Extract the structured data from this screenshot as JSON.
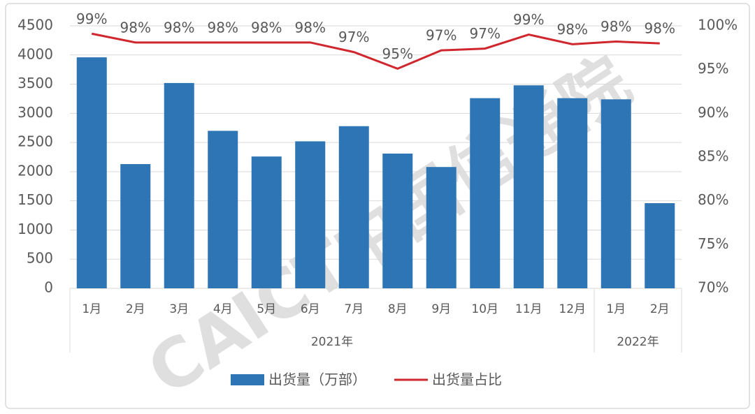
{
  "chart_data": {
    "type": "bar-line",
    "watermark": "CAICT中国信通院",
    "category_groups": [
      {
        "label": "2021年",
        "categories": [
          "1月",
          "2月",
          "3月",
          "4月",
          "5月",
          "6月",
          "7月",
          "8月",
          "9月",
          "10月",
          "11月",
          "12月"
        ]
      },
      {
        "label": "2022年",
        "categories": [
          "1月",
          "2月"
        ]
      }
    ],
    "series": [
      {
        "name": "出货量（万部）",
        "type": "bar",
        "color": "#2e75b6",
        "values": [
          3960,
          2130,
          3520,
          2700,
          2260,
          2520,
          2780,
          2310,
          2080,
          3260,
          3480,
          3260,
          3240,
          1460
        ]
      },
      {
        "name": "出货量占比",
        "type": "line",
        "axis": "y2",
        "color": "#d0262d",
        "values": [
          99.1,
          98.1,
          98.1,
          98.1,
          98.1,
          98.1,
          97.0,
          95.1,
          97.2,
          97.4,
          99.0,
          97.9,
          98.2,
          98.0
        ],
        "value_labels": [
          "99%",
          "98%",
          "98%",
          "98%",
          "98%",
          "98%",
          "97%",
          "95%",
          "97%",
          "97%",
          "99%",
          "98%",
          "98%",
          "98%"
        ]
      }
    ],
    "ylim": [
      0,
      4500
    ],
    "yticks": [
      0,
      500,
      1000,
      1500,
      2000,
      2500,
      3000,
      3500,
      4000,
      4500
    ],
    "y2lim": [
      70,
      100
    ],
    "y2ticks": [
      {
        "value": 70,
        "label": "70%"
      },
      {
        "value": 75,
        "label": "75%"
      },
      {
        "value": 80,
        "label": "80%"
      },
      {
        "value": 85,
        "label": "85%"
      },
      {
        "value": 90,
        "label": "90%"
      },
      {
        "value": 95,
        "label": "95%"
      },
      {
        "value": 100,
        "label": "100%"
      }
    ],
    "grid": true,
    "legend": "bottom"
  }
}
